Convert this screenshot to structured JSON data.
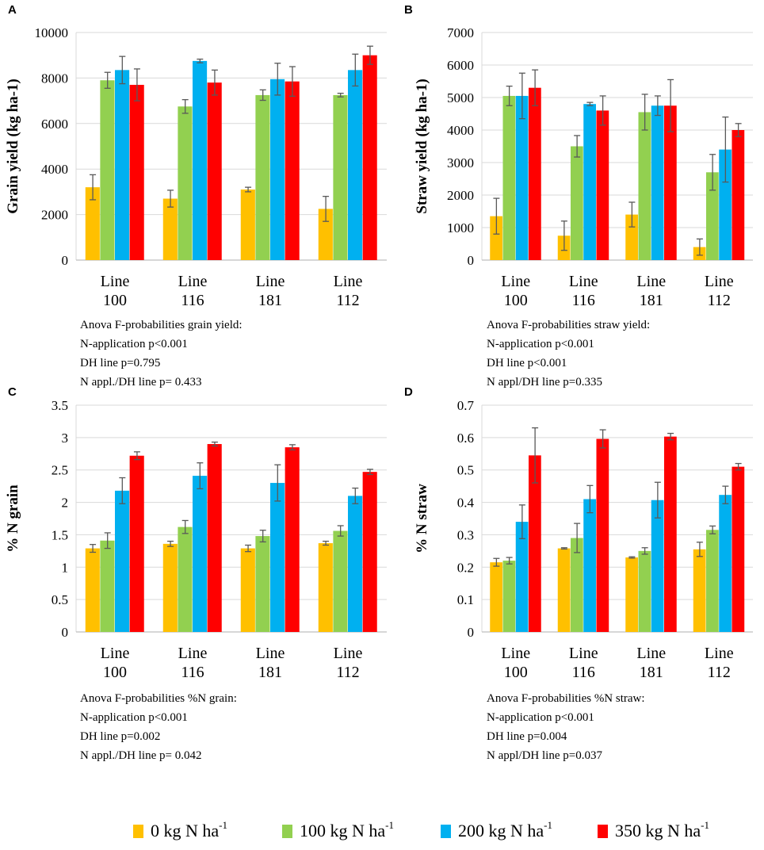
{
  "panels": [
    {
      "letter": "A",
      "ylabel": "Grain yield (kg ha-1)",
      "anova": [
        "Anova F-probabilities grain yield:",
        "N-application p<0.001",
        "DH line p=0.795",
        "N appl./DH line p= 0.433"
      ]
    },
    {
      "letter": "B",
      "ylabel": "Straw yield (kg ha-1)",
      "anova": [
        "Anova F-probabilities straw yield:",
        "N-application p<0.001",
        "DH line p<0.001",
        "N appl/DH line p=0.335"
      ]
    },
    {
      "letter": "C",
      "ylabel": "% N grain",
      "anova": [
        "Anova F-probabilities %N grain:",
        "N-application p<0.001",
        "DH line p=0.002",
        "N appl./DH line p= 0.042"
      ]
    },
    {
      "letter": "D",
      "ylabel": "% N straw",
      "anova": [
        "Anova F-probabilities %N straw:",
        "N-application p<0.001",
        "DH line p=0.004",
        "N appl/DH line p=0.037"
      ]
    }
  ],
  "legend": {
    "items": [
      {
        "label": "0 kg N ha",
        "sup": "-1",
        "color": "#FFC000"
      },
      {
        "label": "100 kg N ha",
        "sup": "-1",
        "color": "#92D050"
      },
      {
        "label": "200 kg N ha",
        "sup": "-1",
        "color": "#00B0F0"
      },
      {
        "label": "350 kg N ha",
        "sup": "-1",
        "color": "#FF0000"
      }
    ]
  },
  "chart_data": [
    {
      "type": "bar",
      "title": "A",
      "ylabel": "Grain yield (kg ha-1)",
      "ylim": [
        0,
        10000
      ],
      "ytick_labels": [
        "0",
        "2000",
        "4000",
        "6000",
        "8000",
        "10000"
      ],
      "categories": [
        [
          "Line",
          "100"
        ],
        [
          "Line",
          "116"
        ],
        [
          "Line",
          "181"
        ],
        [
          "Line",
          "112"
        ]
      ],
      "series": [
        {
          "name": "0 kg N ha-1",
          "values": [
            3200,
            2700,
            3100,
            2250
          ],
          "errors": [
            550,
            370,
            100,
            550
          ]
        },
        {
          "name": "100 kg N ha-1",
          "values": [
            7900,
            6750,
            7250,
            7250
          ],
          "errors": [
            350,
            300,
            230,
            80
          ]
        },
        {
          "name": "200 kg N ha-1",
          "values": [
            8350,
            8750,
            7950,
            8350
          ],
          "errors": [
            600,
            80,
            700,
            700
          ]
        },
        {
          "name": "350 kg N ha-1",
          "values": [
            7700,
            7800,
            7850,
            9000
          ],
          "errors": [
            700,
            550,
            650,
            400
          ]
        }
      ]
    },
    {
      "type": "bar",
      "title": "B",
      "ylabel": "Straw yield (kg ha-1)",
      "ylim": [
        0,
        7000
      ],
      "ytick_labels": [
        "0",
        "1000",
        "2000",
        "3000",
        "4000",
        "5000",
        "6000",
        "7000"
      ],
      "categories": [
        [
          "Line",
          "100"
        ],
        [
          "Line",
          "116"
        ],
        [
          "Line",
          "181"
        ],
        [
          "Line",
          "112"
        ]
      ],
      "series": [
        {
          "name": "0 kg N ha-1",
          "values": [
            1350,
            750,
            1400,
            400
          ],
          "errors": [
            550,
            450,
            380,
            250
          ]
        },
        {
          "name": "100 kg N ha-1",
          "values": [
            5050,
            3500,
            4550,
            2700
          ],
          "errors": [
            300,
            330,
            550,
            550
          ]
        },
        {
          "name": "200 kg N ha-1",
          "values": [
            5050,
            4800,
            4750,
            3400
          ],
          "errors": [
            700,
            50,
            300,
            1000
          ]
        },
        {
          "name": "350 kg N ha-1",
          "values": [
            5300,
            4600,
            4750,
            4000
          ],
          "errors": [
            550,
            450,
            800,
            200
          ]
        }
      ]
    },
    {
      "type": "bar",
      "title": "C",
      "ylabel": "% N grain",
      "ylim": [
        0,
        3.5
      ],
      "ytick_labels": [
        "0",
        "0.5",
        "1",
        "1.5",
        "2",
        "2.5",
        "3",
        "3.5"
      ],
      "categories": [
        [
          "Line",
          "100"
        ],
        [
          "Line",
          "116"
        ],
        [
          "Line",
          "181"
        ],
        [
          "Line",
          "112"
        ]
      ],
      "series": [
        {
          "name": "0 kg N ha-1",
          "values": [
            1.29,
            1.36,
            1.29,
            1.37
          ],
          "errors": [
            0.06,
            0.04,
            0.05,
            0.03
          ]
        },
        {
          "name": "100 kg N ha-1",
          "values": [
            1.41,
            1.62,
            1.48,
            1.56
          ],
          "errors": [
            0.12,
            0.1,
            0.09,
            0.08
          ]
        },
        {
          "name": "200 kg N ha-1",
          "values": [
            2.18,
            2.41,
            2.3,
            2.1
          ],
          "errors": [
            0.2,
            0.2,
            0.28,
            0.12
          ]
        },
        {
          "name": "350 kg N ha-1",
          "values": [
            2.72,
            2.9,
            2.85,
            2.47
          ],
          "errors": [
            0.06,
            0.03,
            0.04,
            0.04
          ]
        }
      ]
    },
    {
      "type": "bar",
      "title": "D",
      "ylabel": "% N straw",
      "ylim": [
        0,
        0.7
      ],
      "ytick_labels": [
        "0",
        "0.1",
        "0.2",
        "0.3",
        "0.4",
        "0.5",
        "0.6",
        "0.7"
      ],
      "categories": [
        [
          "Line",
          "100"
        ],
        [
          "Line",
          "116"
        ],
        [
          "Line",
          "181"
        ],
        [
          "Line",
          "112"
        ]
      ],
      "series": [
        {
          "name": "0 kg N ha-1",
          "values": [
            0.215,
            0.258,
            0.23,
            0.255
          ],
          "errors": [
            0.012,
            0.002,
            0.002,
            0.022
          ]
        },
        {
          "name": "100 kg N ha-1",
          "values": [
            0.22,
            0.29,
            0.25,
            0.315
          ],
          "errors": [
            0.01,
            0.045,
            0.01,
            0.012
          ]
        },
        {
          "name": "200 kg N ha-1",
          "values": [
            0.34,
            0.41,
            0.407,
            0.423
          ],
          "errors": [
            0.052,
            0.042,
            0.055,
            0.027
          ]
        },
        {
          "name": "350 kg N ha-1",
          "values": [
            0.545,
            0.596,
            0.603,
            0.51
          ],
          "errors": [
            0.085,
            0.028,
            0.01,
            0.01
          ]
        }
      ]
    }
  ]
}
